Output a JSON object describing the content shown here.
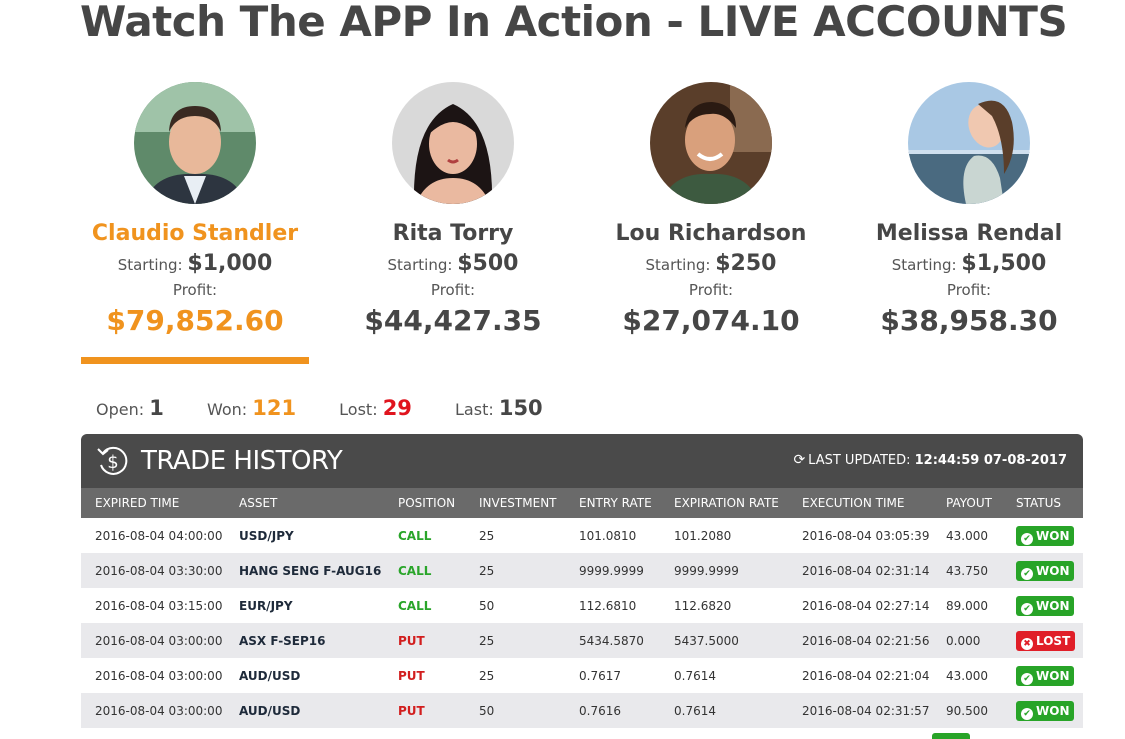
{
  "page_title": "Watch The APP In Action - LIVE ACCOUNTS",
  "accounts": [
    {
      "name": "Claudio Standler",
      "starting_label": "Starting:",
      "starting": "$1,000",
      "profit_label": "Profit:",
      "profit": "$79,852.60",
      "active": true
    },
    {
      "name": "Rita Torry",
      "starting_label": "Starting:",
      "starting": "$500",
      "profit_label": "Profit:",
      "profit": "$44,427.35",
      "active": false
    },
    {
      "name": "Lou Richardson",
      "starting_label": "Starting:",
      "starting": "$250",
      "profit_label": "Profit:",
      "profit": "$27,074.10",
      "active": false
    },
    {
      "name": "Melissa Rendal",
      "starting_label": "Starting:",
      "starting": "$1,500",
      "profit_label": "Profit:",
      "profit": "$38,958.30",
      "active": false
    }
  ],
  "counts": {
    "open_label": "Open:",
    "open": "1",
    "won_label": "Won:",
    "won": "121",
    "lost_label": "Lost:",
    "lost": "29",
    "last_label": "Last:",
    "last": "150"
  },
  "history": {
    "title": "TRADE HISTORY",
    "updated_label": "LAST UPDATED:",
    "updated_value": "12:44:59 07-08-2017",
    "columns": [
      "EXPIRED TIME",
      "ASSET",
      "POSITION",
      "INVESTMENT",
      "ENTRY RATE",
      "EXPIRATION RATE",
      "EXECUTION TIME",
      "PAYOUT",
      "STATUS"
    ],
    "rows": [
      {
        "expired": "2016-08-04 04:00:00",
        "asset": "USD/JPY",
        "position": "CALL",
        "investment": "25",
        "entry": "101.0810",
        "expiration": "101.2080",
        "execution": "2016-08-04 03:05:39",
        "payout": "43.000",
        "status": "WON"
      },
      {
        "expired": "2016-08-04 03:30:00",
        "asset": "HANG SENG F-AUG16",
        "position": "CALL",
        "investment": "25",
        "entry": "9999.9999",
        "expiration": "9999.9999",
        "execution": "2016-08-04 02:31:14",
        "payout": "43.750",
        "status": "WON"
      },
      {
        "expired": "2016-08-04 03:15:00",
        "asset": "EUR/JPY",
        "position": "CALL",
        "investment": "50",
        "entry": "112.6810",
        "expiration": "112.6820",
        "execution": "2016-08-04 02:27:14",
        "payout": "89.000",
        "status": "WON"
      },
      {
        "expired": "2016-08-04 03:00:00",
        "asset": "ASX F-SEP16",
        "position": "PUT",
        "investment": "25",
        "entry": "5434.5870",
        "expiration": "5437.5000",
        "execution": "2016-08-04 02:21:56",
        "payout": "0.000",
        "status": "LOST"
      },
      {
        "expired": "2016-08-04 03:00:00",
        "asset": "AUD/USD",
        "position": "PUT",
        "investment": "25",
        "entry": "0.7617",
        "expiration": "0.7614",
        "execution": "2016-08-04 02:21:04",
        "payout": "43.000",
        "status": "WON"
      },
      {
        "expired": "2016-08-04 03:00:00",
        "asset": "AUD/USD",
        "position": "PUT",
        "investment": "50",
        "entry": "0.7616",
        "expiration": "0.7614",
        "execution": "2016-08-04 02:31:57",
        "payout": "90.500",
        "status": "WON"
      }
    ]
  },
  "colors": {
    "accent": "#f0931e",
    "won": "#28a428",
    "lost": "#e01e28",
    "header_bg": "#4a4a4a"
  },
  "icons": {
    "history": "dollar-history-icon",
    "refresh": "refresh-icon",
    "won": "check-circle-icon",
    "lost": "x-circle-icon"
  }
}
